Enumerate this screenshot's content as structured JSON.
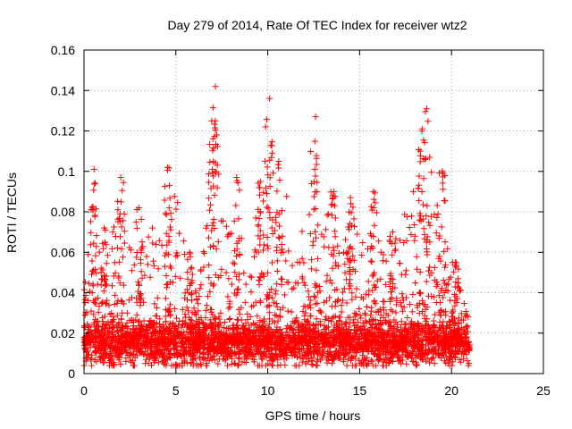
{
  "chart_data": {
    "type": "scatter",
    "title": "Day 279 of 2014, Rate Of TEC Index for receiver wtz2",
    "xlabel": "GPS time / hours",
    "ylabel": "ROTI / TECUs",
    "xlim": [
      0,
      25
    ],
    "ylim": [
      0,
      0.16
    ],
    "xticks": [
      0,
      5,
      10,
      15,
      20,
      25
    ],
    "yticks": [
      0,
      0.02,
      0.04,
      0.06,
      0.08,
      0.1,
      0.12,
      0.14,
      0.16
    ],
    "grid": true,
    "marker": "+",
    "color": "#ff0000",
    "data_range": [
      0,
      21
    ],
    "envelope": {
      "x": [
        0.0,
        0.5,
        1.0,
        1.5,
        2.0,
        2.5,
        3.0,
        3.5,
        4.0,
        4.5,
        5.0,
        5.5,
        6.0,
        6.5,
        7.0,
        7.5,
        8.0,
        8.5,
        9.0,
        9.5,
        10.0,
        10.5,
        11.0,
        11.5,
        12.0,
        12.5,
        13.0,
        13.5,
        14.0,
        14.5,
        15.0,
        15.5,
        16.0,
        16.5,
        17.0,
        17.5,
        18.0,
        18.5,
        19.0,
        19.5,
        20.0,
        20.5,
        21.0
      ],
      "y": [
        0.04,
        0.1,
        0.05,
        0.07,
        0.097,
        0.06,
        0.08,
        0.07,
        0.075,
        0.06,
        0.1,
        0.06,
        0.04,
        0.06,
        0.14,
        0.09,
        0.07,
        0.07,
        0.06,
        0.09,
        0.136,
        0.08,
        0.09,
        0.06,
        0.08,
        0.127,
        0.09,
        0.09,
        0.085,
        0.07,
        0.09,
        0.065,
        0.07,
        0.06,
        0.07,
        0.08,
        0.11,
        0.131,
        0.1,
        0.07,
        0.06,
        0.05,
        0.03
      ]
    },
    "peaks": [
      {
        "x": 0.55,
        "y": 0.101
      },
      {
        "x": 1.1,
        "y": 0.072
      },
      {
        "x": 2.0,
        "y": 0.097
      },
      {
        "x": 3.0,
        "y": 0.082
      },
      {
        "x": 4.55,
        "y": 0.102
      },
      {
        "x": 5.75,
        "y": 0.06
      },
      {
        "x": 6.95,
        "y": 0.125
      },
      {
        "x": 7.15,
        "y": 0.142
      },
      {
        "x": 8.3,
        "y": 0.097
      },
      {
        "x": 9.6,
        "y": 0.095
      },
      {
        "x": 10.1,
        "y": 0.136
      },
      {
        "x": 10.6,
        "y": 0.105
      },
      {
        "x": 12.6,
        "y": 0.127
      },
      {
        "x": 13.6,
        "y": 0.09
      },
      {
        "x": 14.5,
        "y": 0.087
      },
      {
        "x": 15.75,
        "y": 0.09
      },
      {
        "x": 16.8,
        "y": 0.07
      },
      {
        "x": 18.4,
        "y": 0.121
      },
      {
        "x": 18.65,
        "y": 0.131
      },
      {
        "x": 19.5,
        "y": 0.1
      },
      {
        "x": 20.2,
        "y": 0.055
      }
    ],
    "baseline": {
      "typical": 0.015,
      "min": 0.004
    }
  }
}
